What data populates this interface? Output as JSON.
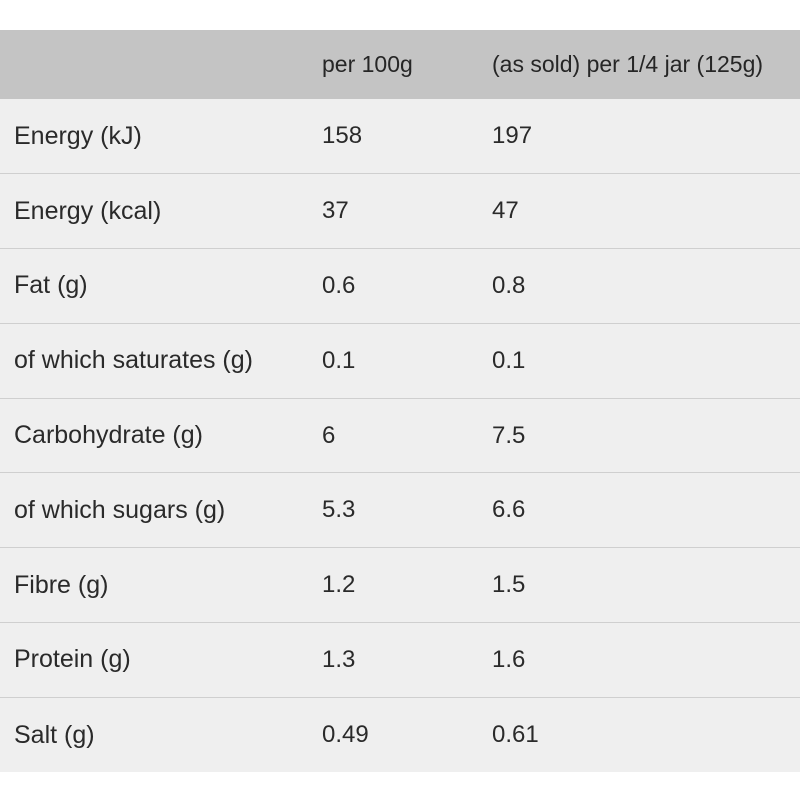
{
  "table": {
    "headers": [
      "",
      "per 100g",
      "(as sold) per 1/4 jar (125g)"
    ],
    "rows": [
      {
        "nutrient": "Energy (kJ)",
        "per_100g": "158",
        "per_serving": "197"
      },
      {
        "nutrient": "Energy (kcal)",
        "per_100g": "37",
        "per_serving": "47"
      },
      {
        "nutrient": "Fat (g)",
        "per_100g": "0.6",
        "per_serving": "0.8"
      },
      {
        "nutrient": "of which saturates (g)",
        "per_100g": "0.1",
        "per_serving": "0.1"
      },
      {
        "nutrient": "Carbohydrate (g)",
        "per_100g": "6",
        "per_serving": "7.5"
      },
      {
        "nutrient": "of which sugars (g)",
        "per_100g": "5.3",
        "per_serving": "6.6"
      },
      {
        "nutrient": "Fibre (g)",
        "per_100g": "1.2",
        "per_serving": "1.5"
      },
      {
        "nutrient": "Protein (g)",
        "per_100g": "1.3",
        "per_serving": "1.6"
      },
      {
        "nutrient": "Salt (g)",
        "per_100g": "0.49",
        "per_serving": "0.61"
      }
    ]
  },
  "colors": {
    "header_background": "#c4c4c4",
    "row_background": "#efefef",
    "row_divider": "#cfcfcf",
    "text": "#2a2a2a"
  }
}
